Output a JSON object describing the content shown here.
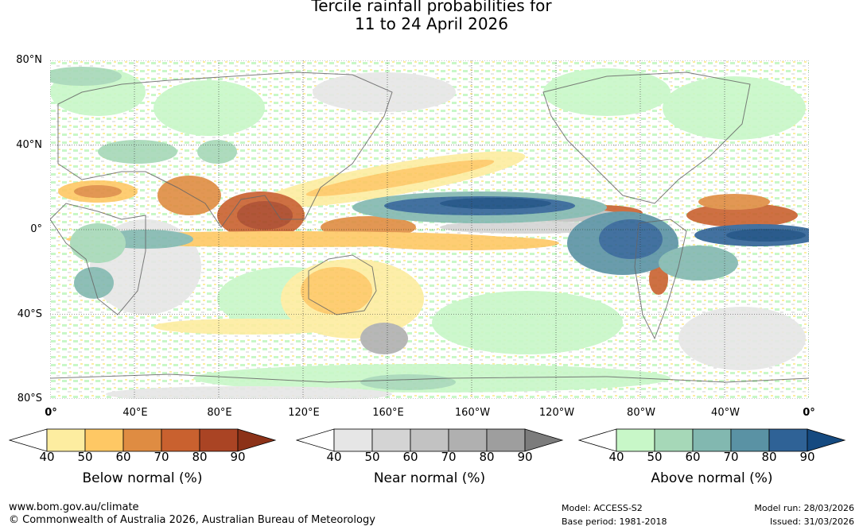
{
  "title_line1": "Tercile rainfall probabilities for",
  "title_line2": "11 to 24 April 2026",
  "lat_labels": [
    "80°N",
    "40°N",
    "0°",
    "40°S",
    "80°S"
  ],
  "lon_labels": [
    "0°",
    "40°E",
    "80°E",
    "120°E",
    "160°E",
    "160°W",
    "120°W",
    "80°W",
    "40°W",
    "0°"
  ],
  "colorbars": [
    {
      "title": "Below normal (%)",
      "ticks": [
        "40",
        "50",
        "60",
        "70",
        "80",
        "90"
      ],
      "colors": [
        "#ffffff",
        "#fdeda0",
        "#fec864",
        "#df8c42",
        "#c9612f",
        "#aa4424",
        "#8c3218"
      ]
    },
    {
      "title": "Near normal (%)",
      "ticks": [
        "40",
        "50",
        "60",
        "70",
        "80",
        "90"
      ],
      "colors": [
        "#ffffff",
        "#e6e6e6",
        "#d4d4d4",
        "#c2c2c2",
        "#b0b0b0",
        "#9e9e9e",
        "#7c7c7c"
      ]
    },
    {
      "title": "Above normal (%)",
      "ticks": [
        "40",
        "50",
        "60",
        "70",
        "80",
        "90"
      ],
      "colors": [
        "#ffffff",
        "#c8f7c8",
        "#a6d8b8",
        "#82b8b0",
        "#5a92a4",
        "#2f6296",
        "#154a80"
      ]
    }
  ],
  "footer": {
    "website": "www.bom.gov.au/climate",
    "copyright": "© Commonwealth of Australia 2026, Australian Bureau of Meteorology",
    "model": "Model: ACCESS-S2",
    "base_period": "Base period: 1981-2018",
    "model_run": "Model run: 28/03/2026",
    "issued": "Issued: 31/03/2026"
  }
}
